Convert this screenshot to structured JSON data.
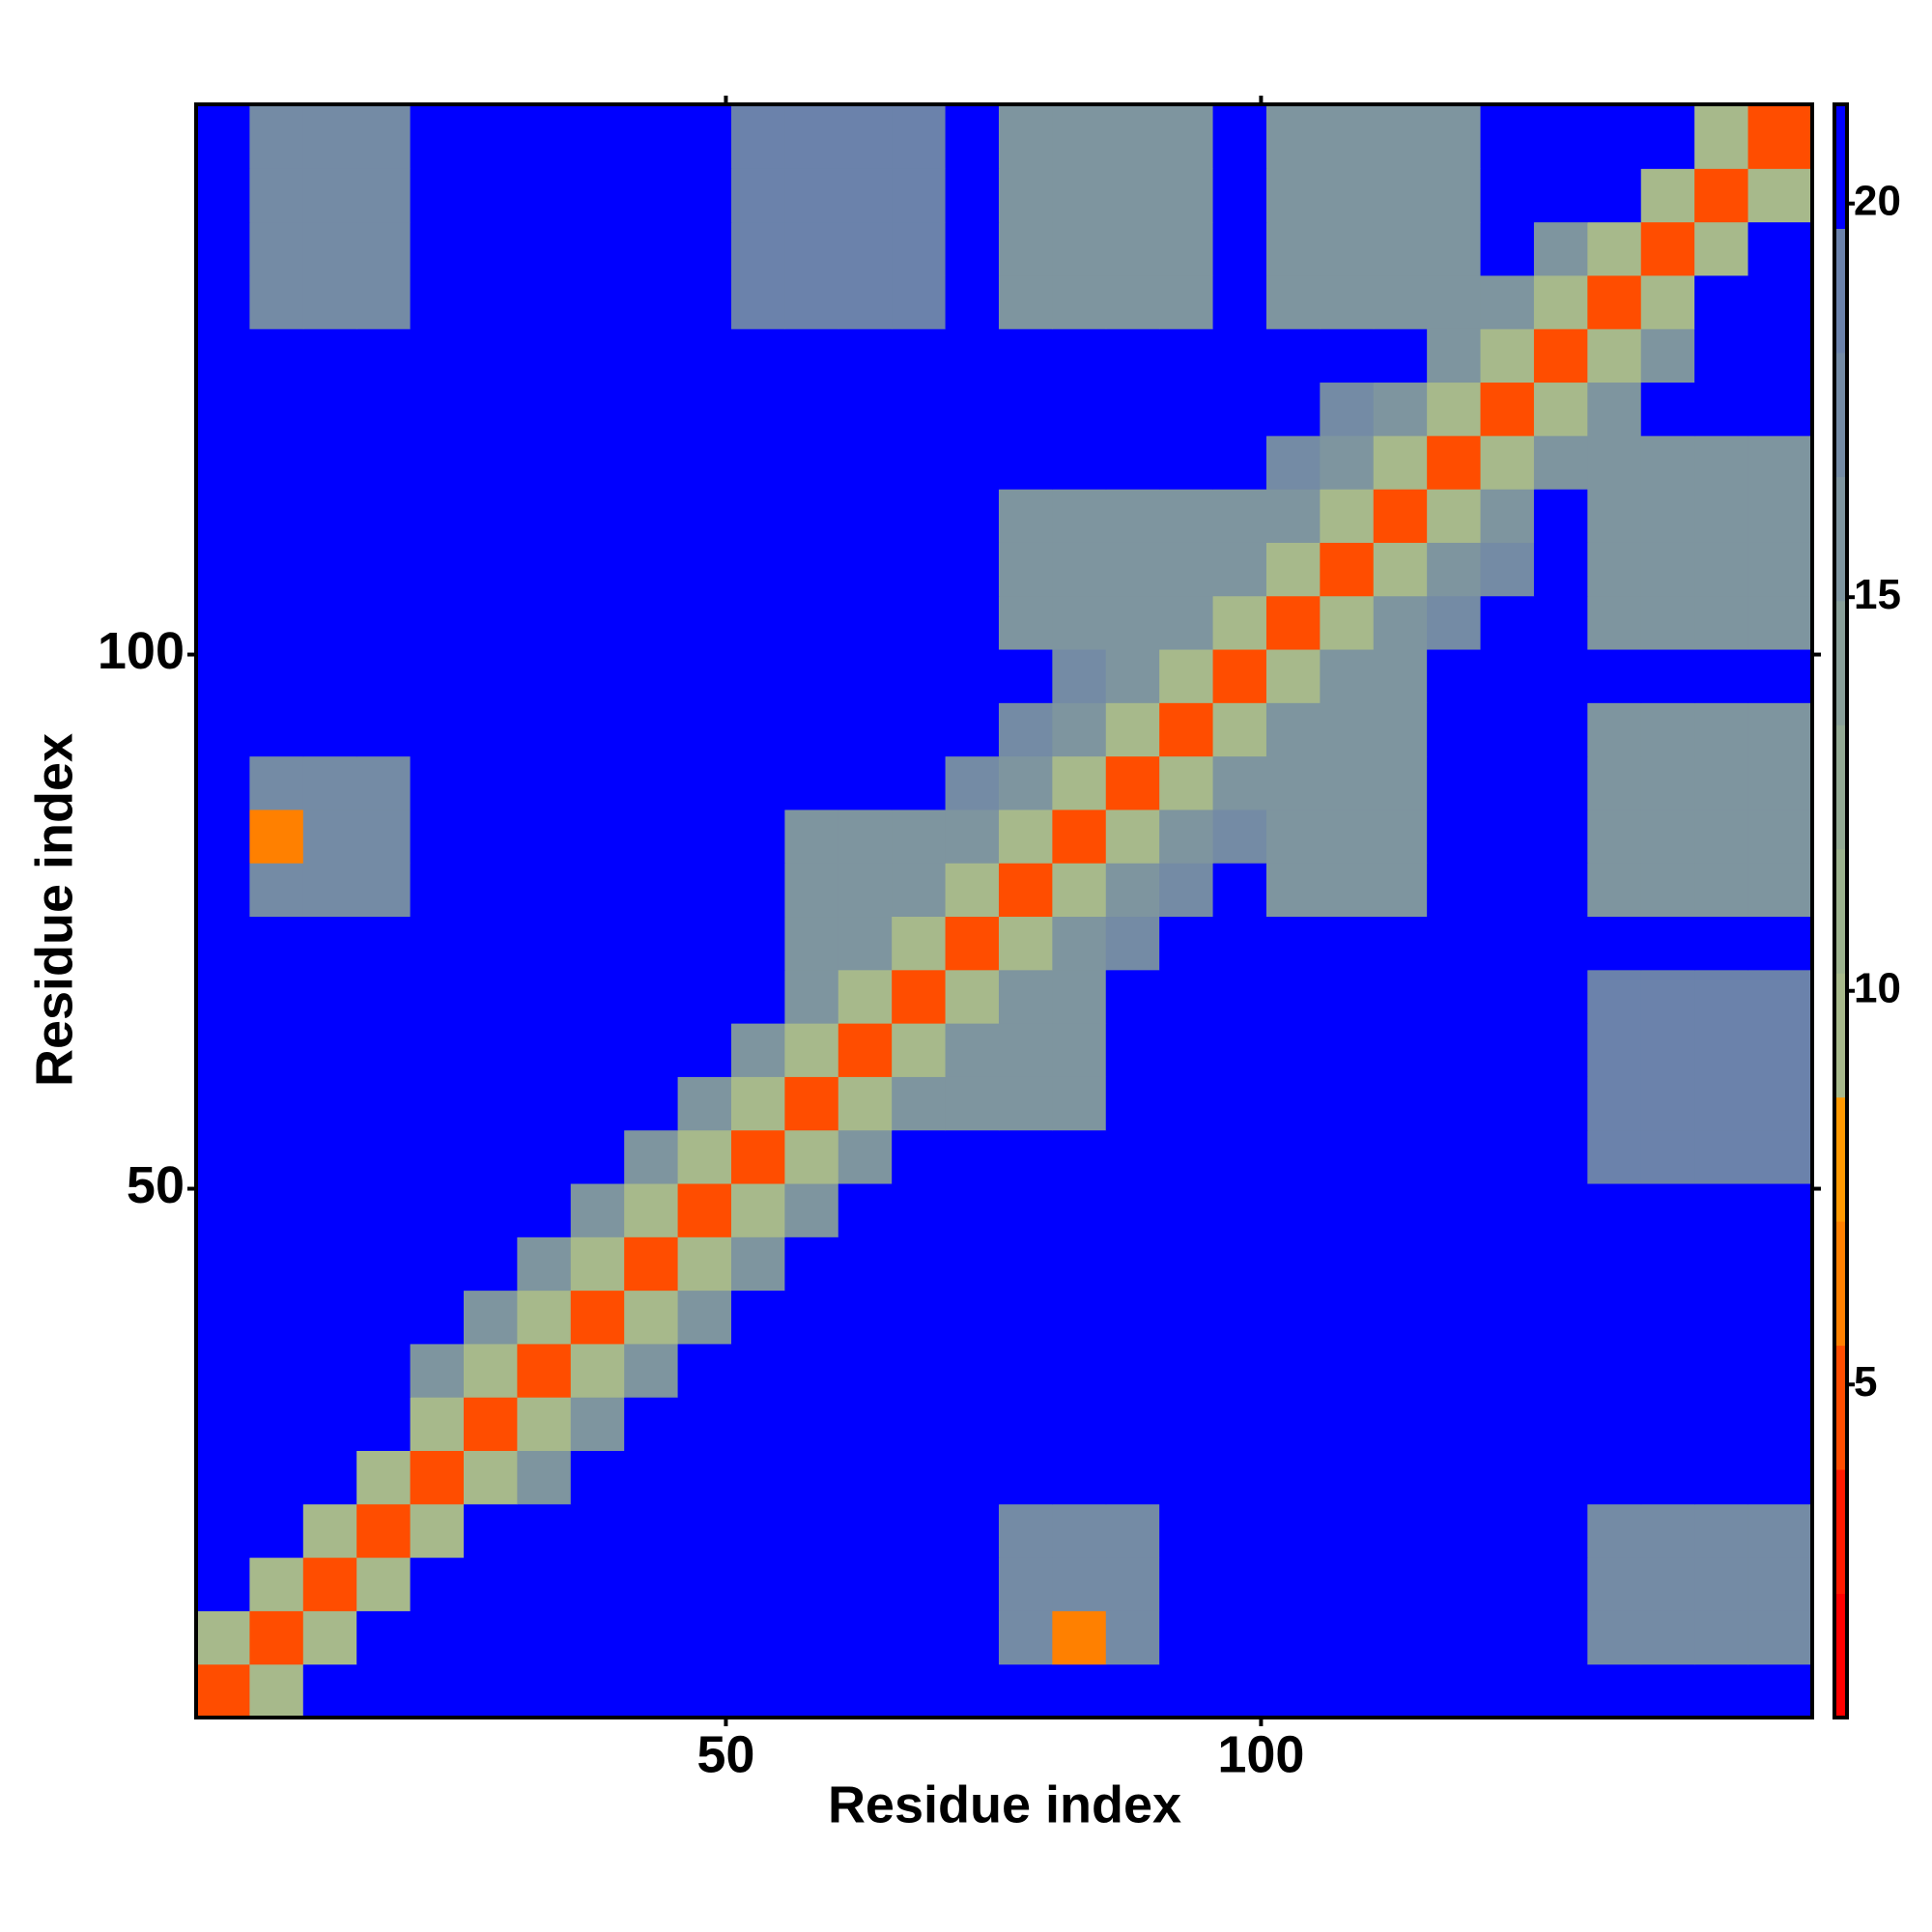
{
  "chart_data": {
    "type": "heatmap",
    "xlabel": "Residue index",
    "ylabel": "Residue index",
    "xlim": [
      0.5,
      151.5
    ],
    "ylim": [
      0.5,
      151.5
    ],
    "xticks": [
      50,
      100
    ],
    "yticks": [
      50,
      100
    ],
    "zlim": [
      0.77,
      21.26
    ],
    "zticks": [
      5,
      10,
      15,
      20
    ],
    "colors": [
      "#ff0000",
      "#ff1a00",
      "#ff4d00",
      "#ff8000",
      "#ff9900",
      "#a7b98b",
      "#9cb38e",
      "#92a993",
      "#889f99",
      "#7e959f",
      "#748ba5",
      "#6b82ab",
      "#0000ff"
    ],
    "xbins": [
      0.5,
      5.5,
      10.5,
      15.5,
      20.5,
      25.5,
      30.5,
      35.5,
      40.5,
      45.5,
      50.5,
      55.5,
      60.5,
      65.5,
      70.5,
      75.5,
      80.5,
      85.5,
      90.5,
      95.5,
      100.5,
      105.5,
      110.5,
      115.5,
      120.5,
      125.5,
      130.5,
      135.5,
      140.5,
      145.5,
      151.5
    ],
    "ybins": [
      0.5,
      5.5,
      10.5,
      15.5,
      20.5,
      25.5,
      30.5,
      35.5,
      40.5,
      45.5,
      50.5,
      55.5,
      60.5,
      65.5,
      70.5,
      75.5,
      80.5,
      85.5,
      90.5,
      95.5,
      100.5,
      105.5,
      110.5,
      115.5,
      120.5,
      125.5,
      130.5,
      135.5,
      140.5,
      145.5,
      151.5
    ],
    "values": [
      [
        4,
        10,
        21,
        21,
        21,
        21,
        21,
        21,
        21,
        21,
        21,
        21,
        21,
        21,
        21,
        21,
        21,
        21,
        21,
        21,
        21,
        21,
        21,
        21,
        21,
        21,
        21,
        21,
        21,
        21
      ],
      [
        10,
        4,
        10,
        21,
        21,
        21,
        21,
        21,
        21,
        21,
        21,
        21,
        21,
        21,
        21,
        18,
        7,
        18,
        21,
        21,
        21,
        21,
        21,
        21,
        21,
        21,
        18,
        18,
        18,
        18
      ],
      [
        21,
        10,
        4,
        10,
        21,
        21,
        21,
        21,
        21,
        21,
        21,
        21,
        21,
        21,
        21,
        18,
        18,
        18,
        21,
        21,
        21,
        21,
        21,
        21,
        21,
        21,
        18,
        18,
        18,
        18
      ],
      [
        21,
        21,
        10,
        4,
        10,
        21,
        21,
        21,
        21,
        21,
        21,
        21,
        21,
        21,
        21,
        18,
        18,
        18,
        21,
        21,
        21,
        21,
        21,
        21,
        21,
        21,
        18,
        18,
        18,
        18
      ],
      [
        21,
        21,
        21,
        10,
        4,
        10,
        16,
        21,
        21,
        21,
        21,
        21,
        21,
        21,
        21,
        21,
        21,
        21,
        21,
        21,
        21,
        21,
        21,
        21,
        21,
        21,
        21,
        21,
        21,
        21
      ],
      [
        21,
        21,
        21,
        21,
        10,
        4,
        10,
        16,
        21,
        21,
        21,
        21,
        21,
        21,
        21,
        21,
        21,
        21,
        21,
        21,
        21,
        21,
        21,
        21,
        21,
        21,
        21,
        21,
        21,
        21
      ],
      [
        21,
        21,
        21,
        21,
        16,
        10,
        4,
        10,
        16,
        21,
        21,
        21,
        21,
        21,
        21,
        21,
        21,
        21,
        21,
        21,
        21,
        21,
        21,
        21,
        21,
        21,
        21,
        21,
        21,
        21
      ],
      [
        21,
        21,
        21,
        21,
        21,
        16,
        10,
        4,
        10,
        16,
        21,
        21,
        21,
        21,
        21,
        21,
        21,
        21,
        21,
        21,
        21,
        21,
        21,
        21,
        21,
        21,
        21,
        21,
        21,
        21
      ],
      [
        21,
        21,
        21,
        21,
        21,
        21,
        16,
        10,
        4,
        10,
        16,
        21,
        21,
        21,
        21,
        21,
        21,
        21,
        21,
        21,
        21,
        21,
        21,
        21,
        21,
        21,
        21,
        21,
        21,
        21
      ],
      [
        21,
        21,
        21,
        21,
        21,
        21,
        21,
        16,
        10,
        4,
        10,
        16,
        21,
        21,
        21,
        21,
        21,
        21,
        21,
        21,
        21,
        21,
        21,
        21,
        21,
        21,
        21,
        21,
        21,
        21
      ],
      [
        21,
        21,
        21,
        21,
        21,
        21,
        21,
        21,
        16,
        10,
        4,
        10,
        16,
        21,
        21,
        21,
        21,
        21,
        21,
        21,
        21,
        21,
        21,
        21,
        21,
        21,
        19,
        19,
        19,
        19
      ],
      [
        21,
        21,
        21,
        21,
        21,
        21,
        21,
        21,
        21,
        16,
        10,
        4,
        10,
        16,
        16,
        16,
        16,
        21,
        21,
        21,
        21,
        21,
        21,
        21,
        21,
        21,
        19,
        19,
        19,
        19
      ],
      [
        21,
        21,
        21,
        21,
        21,
        21,
        21,
        21,
        21,
        21,
        16,
        10,
        4,
        10,
        16,
        16,
        16,
        21,
        21,
        21,
        21,
        21,
        21,
        21,
        21,
        21,
        19,
        19,
        19,
        19
      ],
      [
        21,
        21,
        21,
        21,
        21,
        21,
        21,
        21,
        21,
        21,
        21,
        16,
        10,
        4,
        10,
        16,
        16,
        21,
        21,
        21,
        21,
        21,
        21,
        21,
        21,
        21,
        19,
        19,
        19,
        19
      ],
      [
        21,
        21,
        21,
        21,
        21,
        21,
        21,
        21,
        21,
        21,
        21,
        16,
        16,
        10,
        4,
        10,
        16,
        18,
        21,
        21,
        21,
        21,
        21,
        21,
        21,
        21,
        21,
        21,
        21,
        21
      ],
      [
        21,
        18,
        18,
        18,
        21,
        21,
        21,
        21,
        21,
        21,
        21,
        16,
        16,
        16,
        10,
        4,
        10,
        16,
        18,
        21,
        16,
        16,
        16,
        21,
        21,
        21,
        15,
        15,
        15,
        15
      ],
      [
        21,
        7,
        18,
        18,
        21,
        21,
        21,
        21,
        21,
        21,
        21,
        16,
        16,
        16,
        16,
        10,
        4,
        10,
        16,
        18,
        16,
        16,
        16,
        21,
        21,
        21,
        15,
        15,
        15,
        15
      ],
      [
        21,
        18,
        18,
        18,
        21,
        21,
        21,
        21,
        21,
        21,
        21,
        21,
        21,
        21,
        18,
        16,
        10,
        4,
        10,
        16,
        16,
        16,
        16,
        21,
        21,
        21,
        15,
        15,
        15,
        15
      ],
      [
        21,
        21,
        21,
        21,
        21,
        21,
        21,
        21,
        21,
        21,
        21,
        21,
        21,
        21,
        21,
        18,
        16,
        10,
        4,
        10,
        16,
        16,
        16,
        21,
        21,
        21,
        15,
        15,
        15,
        15
      ],
      [
        21,
        21,
        21,
        21,
        21,
        21,
        21,
        21,
        21,
        21,
        21,
        21,
        21,
        21,
        21,
        21,
        18,
        16,
        10,
        4,
        10,
        16,
        16,
        21,
        21,
        21,
        21,
        21,
        21,
        21
      ],
      [
        21,
        21,
        21,
        21,
        21,
        21,
        21,
        21,
        21,
        21,
        21,
        21,
        21,
        21,
        21,
        16,
        16,
        16,
        16,
        10,
        4,
        10,
        16,
        18,
        21,
        21,
        16,
        16,
        16,
        16
      ],
      [
        21,
        21,
        21,
        21,
        21,
        21,
        21,
        21,
        21,
        21,
        21,
        21,
        21,
        21,
        21,
        16,
        16,
        16,
        16,
        16,
        10,
        4,
        10,
        16,
        18,
        21,
        16,
        16,
        16,
        16
      ],
      [
        21,
        21,
        21,
        21,
        21,
        21,
        21,
        21,
        21,
        21,
        21,
        21,
        21,
        21,
        21,
        16,
        16,
        16,
        16,
        16,
        16,
        10,
        4,
        10,
        16,
        21,
        16,
        16,
        16,
        16
      ],
      [
        21,
        21,
        21,
        21,
        21,
        21,
        21,
        21,
        21,
        21,
        21,
        21,
        21,
        21,
        21,
        21,
        21,
        21,
        21,
        21,
        18,
        16,
        10,
        4,
        10,
        16,
        16,
        16,
        16,
        16
      ],
      [
        21,
        21,
        21,
        21,
        21,
        21,
        21,
        21,
        21,
        21,
        21,
        21,
        21,
        21,
        21,
        21,
        21,
        21,
        21,
        21,
        21,
        18,
        16,
        10,
        4,
        10,
        16,
        21,
        21,
        21
      ],
      [
        21,
        21,
        21,
        21,
        21,
        21,
        21,
        21,
        21,
        21,
        21,
        21,
        21,
        21,
        21,
        21,
        21,
        21,
        21,
        21,
        21,
        21,
        21,
        16,
        10,
        4,
        10,
        16,
        21,
        21
      ],
      [
        21,
        18,
        18,
        18,
        21,
        21,
        21,
        21,
        21,
        21,
        19,
        19,
        19,
        19,
        21,
        15,
        15,
        15,
        15,
        21,
        16,
        16,
        16,
        16,
        16,
        10,
        4,
        10,
        21,
        21
      ],
      [
        21,
        18,
        18,
        18,
        21,
        21,
        21,
        21,
        21,
        21,
        19,
        19,
        19,
        19,
        21,
        15,
        15,
        15,
        15,
        21,
        16,
        16,
        16,
        16,
        21,
        16,
        10,
        4,
        10,
        21
      ],
      [
        21,
        18,
        18,
        18,
        21,
        21,
        21,
        21,
        21,
        21,
        19,
        19,
        19,
        19,
        21,
        15,
        15,
        15,
        15,
        21,
        16,
        16,
        16,
        16,
        21,
        21,
        21,
        10,
        4,
        10
      ],
      [
        21,
        18,
        18,
        18,
        21,
        21,
        21,
        21,
        21,
        21,
        19,
        19,
        19,
        19,
        21,
        15,
        15,
        15,
        15,
        21,
        16,
        16,
        16,
        16,
        21,
        21,
        21,
        21,
        10,
        4
      ]
    ]
  }
}
